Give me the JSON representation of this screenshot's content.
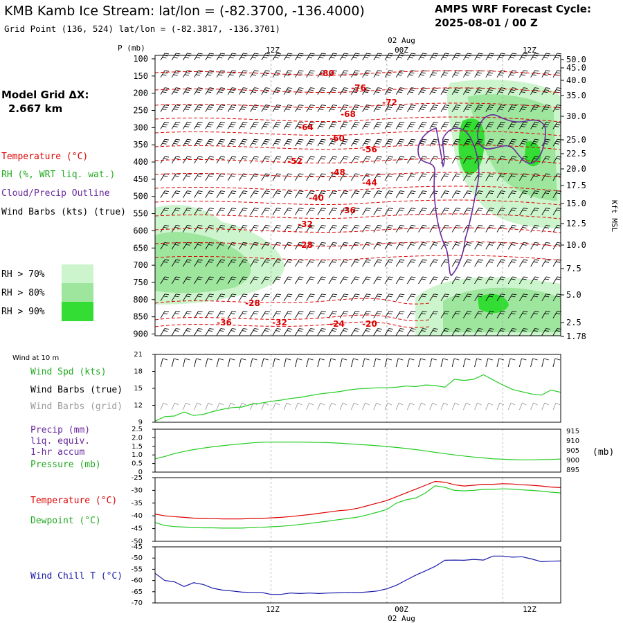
{
  "header": {
    "title": "KMB Kamb Ice Stream:  lat/lon = (-82.3700, -136.4000)",
    "subtitle": "Grid Point (136, 524) lat/lon = (-82.3817, -136.3701)",
    "cycle_label": "AMPS WRF Forecast Cycle:",
    "cycle_value": "2025-08-01 / 00  Z"
  },
  "colors": {
    "temperature": "#dd0000",
    "rh": "#22cc22",
    "cloud": "#6a2a9a",
    "dewpoint": "#22cc22",
    "windchill": "#1a1aaa",
    "barbs_grid": "#999999"
  },
  "left_legend": {
    "model_grid_label": "Model Grid ΔX:",
    "model_grid_value": "2.667 km",
    "temperature": "Temperature (°C)",
    "rh": "RH (%, WRT liq. wat.)",
    "cloud": "Cloud/Precip Outline",
    "wind": "Wind Barbs (kts) (true)",
    "rh70": "RH > 70%",
    "rh80": "RH > 80%",
    "rh90": "RH > 90%"
  },
  "time_axis": {
    "top_date": "02 Aug",
    "bottom_date": "02 Aug",
    "ticks": [
      "12Z",
      "00Z",
      "12Z"
    ]
  },
  "cross_section": {
    "p_label": "P (mb)",
    "p_ticks": [
      "100",
      "150",
      "200",
      "250",
      "300",
      "350",
      "400",
      "450",
      "500",
      "550",
      "600",
      "650",
      "700",
      "750",
      "800",
      "850",
      "900"
    ],
    "height_ticks": [
      "50.0",
      "45.0",
      "40.0",
      "35.0",
      "30.0",
      "25.0",
      "22.5",
      "20.0",
      "17.5",
      "15.0",
      "12.5",
      "10.0",
      "7.5",
      "5.0",
      "2.5",
      "1.78"
    ],
    "height_axis_label": "Kft MSL",
    "temperature_labels": [
      "-80",
      "-76",
      "-72",
      "-68",
      "-64",
      "-60",
      "-56",
      "-52",
      "-48",
      "-44",
      "-40",
      "-36",
      "-32",
      "-28",
      "-28",
      "-36",
      "-32",
      "-24",
      "-20"
    ]
  },
  "panel_wind": {
    "title": "Wind at 10 m",
    "legend_speed": "Wind Spd (kts)",
    "legend_true": "Wind Barbs (true)",
    "legend_grid": "Wind Barbs (grid)",
    "y_ticks": [
      "21",
      "18",
      "15",
      "12",
      "9"
    ]
  },
  "panel_precip": {
    "legend_precip": "Precip (mm)",
    "legend_liq": "liq. equiv.",
    "legend_accum": "1-hr accum",
    "legend_pressure": "Pressure (mb)",
    "y_ticks_left": [
      "2.5",
      "2.0",
      "1.5",
      "1.0",
      "0.5",
      "0"
    ],
    "y_ticks_right": [
      "915",
      "910",
      "905",
      "900",
      "895"
    ],
    "right_unit": "(mb)"
  },
  "panel_temp": {
    "legend_temp": "Temperature (°C)",
    "legend_dew": "Dewpoint (°C)",
    "y_ticks": [
      "-25",
      "-30",
      "-35",
      "-40",
      "-45",
      "-50"
    ]
  },
  "panel_chill": {
    "legend": "Wind Chill T (°C)",
    "y_ticks": [
      "-45",
      "-50",
      "-55",
      "-60",
      "-65",
      "-70"
    ]
  },
  "chart_data": [
    {
      "type": "line",
      "title": "Wind at 10 m",
      "ylabel": "Wind Spd (kts)",
      "ylim": [
        9,
        21
      ],
      "x_hours": [
        0,
        1,
        2,
        3,
        4,
        5,
        6,
        7,
        8,
        9,
        10,
        11,
        12,
        13,
        14,
        15,
        16,
        17,
        18,
        19,
        20,
        21,
        22,
        23,
        24,
        25,
        26,
        27,
        28,
        29,
        30,
        31,
        32,
        33,
        34,
        35,
        36,
        37,
        38,
        39,
        40,
        41,
        42
      ],
      "series": [
        {
          "name": "Wind Spd (kts)",
          "values": [
            9.2,
            10,
            10.1,
            10.8,
            10.2,
            10.4,
            10.9,
            11.3,
            11.6,
            11.7,
            12.2,
            12.4,
            12.7,
            12.9,
            13.2,
            13.4,
            13.7,
            14,
            14.2,
            14.4,
            14.7,
            14.9,
            15,
            15.1,
            15.1,
            15.2,
            15.4,
            15.3,
            15.6,
            15.5,
            15.2,
            16.6,
            16.4,
            16.6,
            17.4,
            16.5,
            15.6,
            14.8,
            14.4,
            14,
            13.8,
            14.7,
            14.3
          ]
        }
      ]
    },
    {
      "type": "line",
      "title": "Pressure (mb)",
      "ylim": [
        895,
        915
      ],
      "x_hours": [
        0,
        1,
        2,
        3,
        4,
        5,
        6,
        7,
        8,
        9,
        10,
        11,
        12,
        13,
        14,
        15,
        16,
        17,
        18,
        19,
        20,
        21,
        22,
        23,
        24,
        25,
        26,
        27,
        28,
        29,
        30,
        31,
        32,
        33,
        34,
        35,
        36,
        37,
        38,
        39,
        40,
        41,
        42
      ],
      "series": [
        {
          "name": "Pressure (mb)",
          "values": [
            901.2,
            902.3,
            903.6,
            904.6,
            905.5,
            906.2,
            906.8,
            907.3,
            907.8,
            908.2,
            908.6,
            908.9,
            909.0,
            909.0,
            909.0,
            909.0,
            908.9,
            908.8,
            908.7,
            908.5,
            908.2,
            907.9,
            907.6,
            907.3,
            906.9,
            906.5,
            906.0,
            905.5,
            904.9,
            904.2,
            903.6,
            903.0,
            902.5,
            902.0,
            901.6,
            901.2,
            901.0,
            900.8,
            900.7,
            900.7,
            900.8,
            900.9,
            901.1
          ]
        }
      ]
    },
    {
      "type": "line",
      "title": "Temperature / Dewpoint",
      "ylim": [
        -50,
        -25
      ],
      "x_hours": [
        0,
        1,
        2,
        3,
        4,
        5,
        6,
        7,
        8,
        9,
        10,
        11,
        12,
        13,
        14,
        15,
        16,
        17,
        18,
        19,
        20,
        21,
        22,
        23,
        24,
        25,
        26,
        27,
        28,
        29,
        30,
        31,
        32,
        33,
        34,
        35,
        36,
        37,
        38,
        39,
        40,
        41,
        42
      ],
      "series": [
        {
          "name": "Temperature (°C)",
          "values": [
            -39.3,
            -40.0,
            -40.3,
            -40.6,
            -40.9,
            -41.0,
            -41.1,
            -41.2,
            -41.2,
            -41.2,
            -41.0,
            -41.0,
            -40.8,
            -40.6,
            -40.3,
            -39.9,
            -39.5,
            -39.0,
            -38.5,
            -38.0,
            -37.7,
            -37.0,
            -36.0,
            -35.0,
            -34.0,
            -32.5,
            -31.0,
            -29.5,
            -28.0,
            -26.5,
            -26.8,
            -27.8,
            -28.3,
            -28.0,
            -27.6,
            -27.6,
            -27.4,
            -27.5,
            -27.8,
            -28.0,
            -28.3,
            -28.7,
            -28.9
          ]
        },
        {
          "name": "Dewpoint (°C)",
          "values": [
            -42.6,
            -43.8,
            -44.2,
            -44.4,
            -44.6,
            -44.7,
            -44.7,
            -44.8,
            -44.8,
            -44.8,
            -44.6,
            -44.5,
            -44.3,
            -44.1,
            -43.8,
            -43.4,
            -43.0,
            -42.5,
            -42.0,
            -41.5,
            -41.0,
            -40.5,
            -39.6,
            -38.6,
            -37.5,
            -35.0,
            -33.7,
            -33.0,
            -31.0,
            -28.2,
            -28.8,
            -30.0,
            -30.2,
            -30.0,
            -29.6,
            -29.6,
            -29.4,
            -29.5,
            -29.8,
            -30.0,
            -30.3,
            -30.7,
            -31.0
          ]
        }
      ]
    },
    {
      "type": "line",
      "title": "Wind Chill T (°C)",
      "ylim": [
        -70,
        -45
      ],
      "x_hours": [
        0,
        1,
        2,
        3,
        4,
        5,
        6,
        7,
        8,
        9,
        10,
        11,
        12,
        13,
        14,
        15,
        16,
        17,
        18,
        19,
        20,
        21,
        22,
        23,
        24,
        25,
        26,
        27,
        28,
        29,
        30,
        31,
        32,
        33,
        34,
        35,
        36,
        37,
        38,
        39,
        40,
        41,
        42
      ],
      "series": [
        {
          "name": "Wind Chill T (°C)",
          "values": [
            -56.8,
            -60.0,
            -60.6,
            -62.7,
            -61.0,
            -61.8,
            -63.5,
            -64.3,
            -64.7,
            -65.2,
            -65.3,
            -65.3,
            -66.2,
            -66.2,
            -65.6,
            -65.8,
            -65.6,
            -65.8,
            -65.6,
            -65.5,
            -65.3,
            -65.4,
            -65.1,
            -64.7,
            -63.7,
            -62.1,
            -59.8,
            -57.6,
            -55.7,
            -53.7,
            -51.0,
            -50.9,
            -51.0,
            -50.6,
            -50.9,
            -49.1,
            -49.1,
            -49.6,
            -49.4,
            -50.4,
            -51.6,
            -51.4,
            -51.3
          ]
        }
      ]
    }
  ]
}
